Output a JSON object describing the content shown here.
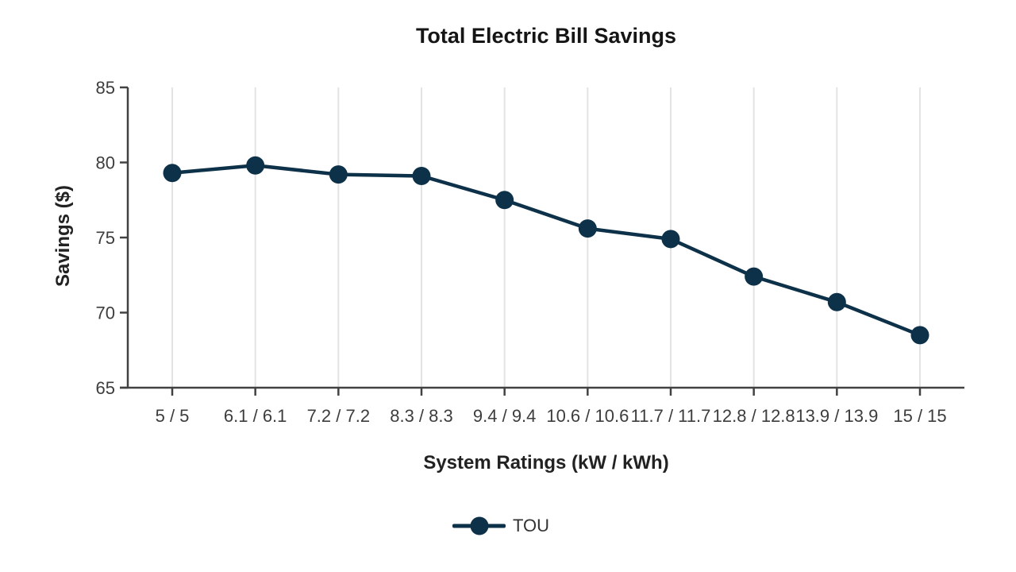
{
  "chart_data": {
    "type": "line",
    "title": "Total Electric Bill Savings",
    "xlabel": "System Ratings (kW / kWh)",
    "ylabel": "Savings ($)",
    "categories": [
      "5 / 5",
      "6.1 / 6.1",
      "7.2 / 7.2",
      "8.3 / 8.3",
      "9.4 / 9.4",
      "10.6 / 10.6",
      "11.7 / 11.7",
      "12.8 / 12.8",
      "13.9 / 13.9",
      "15 / 15"
    ],
    "series": [
      {
        "name": "TOU",
        "values": [
          79.3,
          79.8,
          79.2,
          79.1,
          77.5,
          75.6,
          74.9,
          72.4,
          70.7,
          68.5
        ]
      }
    ],
    "ylim": [
      65,
      85
    ],
    "yticks": [
      65,
      70,
      75,
      80,
      85
    ],
    "grid": "vertical-only",
    "legend_position": "bottom-center"
  },
  "colors": {
    "series": "#0d3149",
    "axis": "#424242",
    "grid": "#e3e3e3",
    "tick_label": "#3d3d3d",
    "title": "#151515"
  }
}
